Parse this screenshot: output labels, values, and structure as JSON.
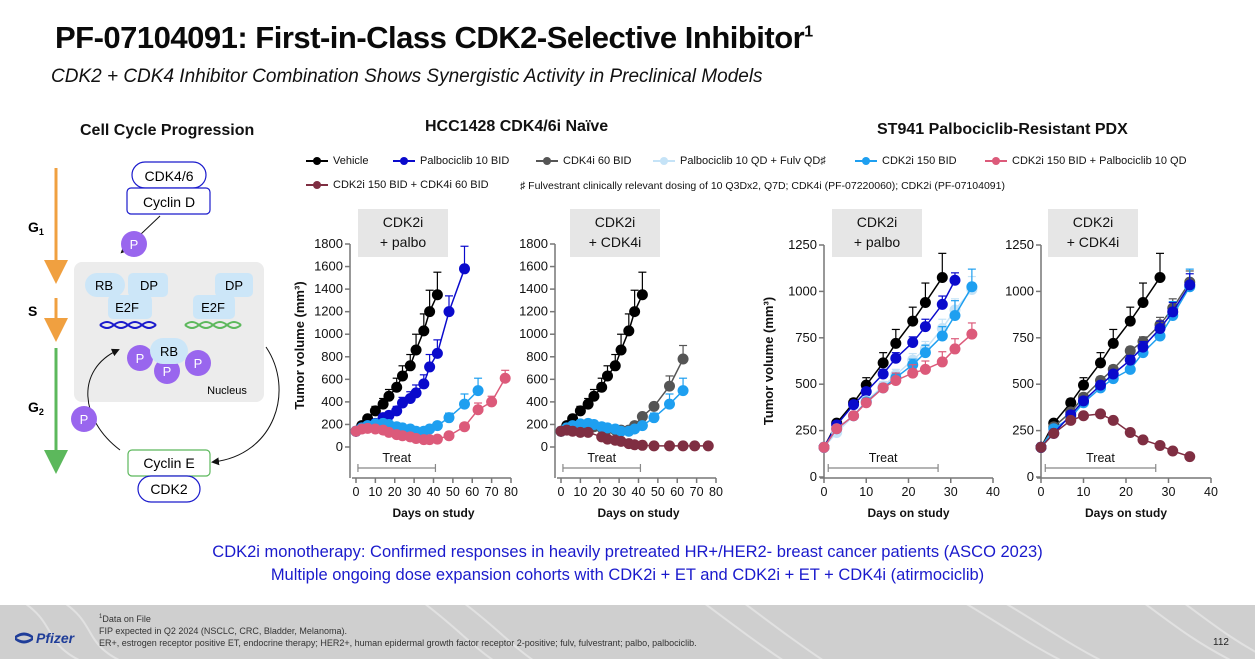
{
  "header": {
    "title": "PF-07104091: First-in-Class CDK2-Selective Inhibitor",
    "title_superscript": "1",
    "subtitle": "CDK2 + CDK4 Inhibitor Combination Shows Synergistic Activity in Preclinical Models"
  },
  "diagram": {
    "title": "Cell Cycle Progression",
    "phases": [
      {
        "label": "G",
        "sub": "1",
        "color": "#f0a040"
      },
      {
        "label": "S",
        "sub": "",
        "color": "#f0a040"
      },
      {
        "label": "G",
        "sub": "2",
        "color": "#5cb85c"
      }
    ],
    "cdk46": "CDK4/6",
    "cyclin_d": "Cyclin D",
    "cyclin_e": "Cyclin E",
    "cdk2": "CDK2",
    "rb": "RB",
    "dp": "DP",
    "e2f": "E2F",
    "p": "P",
    "nucleus": "Nucleus"
  },
  "sections": {
    "left_title": "HCC1428 CDK4/6i Naïve",
    "right_title": "ST941 Palbociclib-Resistant PDX"
  },
  "legend": {
    "items": [
      {
        "label": "Vehicle",
        "color": "#000000"
      },
      {
        "label": "Palbociclib 10 BID",
        "color": "#0a0acc"
      },
      {
        "label": "CDK4i 60 BID",
        "color": "#555555"
      },
      {
        "label": "Palbociclib 10 QD + Fulv QD♯",
        "color": "#c5e3f7"
      },
      {
        "label": "CDK2i 150 BID",
        "color": "#1e9ff0"
      },
      {
        "label": "CDK2i 150 BID + Palbociclib 10 QD",
        "color": "#dc5a7a"
      },
      {
        "label": "CDK2i 150 BID + CDK4i 60 BID",
        "color": "#7f2e42"
      }
    ],
    "footnote": "♯ Fulvestrant clinically relevant dosing of 10 Q3Dx2, Q7D; CDK4i (PF-07220060); CDK2i (PF-07104091)"
  },
  "chart_data": [
    {
      "type": "line",
      "model": "HCC1428 CDK4/6i Naïve",
      "panel_label": [
        "CDK2i",
        "+ palbo"
      ],
      "xlabel": "Days on study",
      "ylabel": "Tumor volume (mm³)",
      "xlim": [
        0,
        80
      ],
      "xticks": [
        "0",
        "10",
        "20",
        "30",
        "40",
        "50",
        "60",
        "70",
        "80"
      ],
      "ylim": [
        0,
        1800
      ],
      "yticks": [
        "0",
        "200",
        "400",
        "600",
        "800",
        "1000",
        "1200",
        "1400",
        "1600",
        "1800"
      ],
      "treat_label": "Treat",
      "treat_range": [
        1,
        41
      ],
      "series": [
        {
          "name": "Vehicle",
          "color": "#000000",
          "x": [
            0,
            3,
            6,
            10,
            14,
            17,
            21,
            24,
            28,
            31,
            35,
            38,
            42
          ],
          "y": [
            140,
            190,
            250,
            320,
            380,
            450,
            530,
            630,
            720,
            860,
            1030,
            1200,
            1350
          ],
          "err": [
            0,
            20,
            25,
            40,
            50,
            60,
            80,
            90,
            100,
            140,
            150,
            190,
            200
          ]
        },
        {
          "name": "Palbociclib 10 BID",
          "color": "#0a0acc",
          "x": [
            0,
            3,
            6,
            10,
            14,
            17,
            21,
            24,
            28,
            31,
            35,
            38,
            42,
            48,
            56
          ],
          "y": [
            140,
            170,
            190,
            210,
            260,
            280,
            320,
            390,
            430,
            480,
            560,
            710,
            830,
            1200,
            1580
          ],
          "err": [
            0,
            15,
            15,
            20,
            25,
            30,
            40,
            50,
            60,
            70,
            80,
            110,
            120,
            140,
            200
          ]
        },
        {
          "name": "CDK2i 150 BID",
          "color": "#1e9ff0",
          "x": [
            0,
            3,
            6,
            10,
            14,
            17,
            21,
            24,
            28,
            31,
            35,
            38,
            42,
            48,
            56,
            63
          ],
          "y": [
            140,
            170,
            190,
            205,
            210,
            200,
            180,
            170,
            160,
            140,
            140,
            160,
            190,
            260,
            380,
            500
          ],
          "err": [
            0,
            10,
            10,
            10,
            10,
            10,
            10,
            10,
            10,
            10,
            10,
            15,
            20,
            40,
            90,
            110
          ]
        },
        {
          "name": "CDK2i 150 BID + Palbociclib 10 QD",
          "color": "#dc5a7a",
          "x": [
            0,
            3,
            6,
            10,
            14,
            17,
            21,
            24,
            28,
            31,
            35,
            38,
            42,
            48,
            56,
            63,
            70,
            77
          ],
          "y": [
            140,
            160,
            165,
            160,
            150,
            130,
            110,
            100,
            90,
            75,
            65,
            65,
            70,
            100,
            180,
            330,
            400,
            610
          ],
          "err": [
            0,
            10,
            10,
            10,
            10,
            10,
            10,
            10,
            10,
            10,
            10,
            10,
            10,
            10,
            20,
            60,
            50,
            70
          ]
        }
      ]
    },
    {
      "type": "line",
      "model": "HCC1428 CDK4/6i Naïve",
      "panel_label": [
        "CDK2i",
        "+ CDK4i"
      ],
      "xlabel": "Days on study",
      "ylabel": "",
      "xlim": [
        0,
        80
      ],
      "xticks": [
        "0",
        "10",
        "20",
        "30",
        "40",
        "50",
        "60",
        "70",
        "80"
      ],
      "ylim": [
        0,
        1800
      ],
      "yticks": [
        "0",
        "200",
        "400",
        "600",
        "800",
        "1000",
        "1200",
        "1400",
        "1600",
        "1800"
      ],
      "treat_label": "Treat",
      "treat_range": [
        1,
        41
      ],
      "series": [
        {
          "name": "Vehicle",
          "color": "#000000",
          "x": [
            0,
            3,
            6,
            10,
            14,
            17,
            21,
            24,
            28,
            31,
            35,
            38,
            42
          ],
          "y": [
            140,
            190,
            250,
            320,
            380,
            450,
            530,
            630,
            720,
            860,
            1030,
            1200,
            1350
          ],
          "err": [
            0,
            20,
            25,
            40,
            50,
            60,
            80,
            90,
            100,
            140,
            150,
            190,
            200
          ]
        },
        {
          "name": "CDK4i 60 BID",
          "color": "#555555",
          "x": [
            0,
            3,
            6,
            10,
            14,
            17,
            21,
            24,
            28,
            31,
            35,
            38,
            42,
            48,
            56,
            63
          ],
          "y": [
            140,
            170,
            180,
            190,
            185,
            180,
            170,
            160,
            150,
            150,
            150,
            190,
            270,
            360,
            540,
            780
          ],
          "err": [
            0,
            10,
            10,
            10,
            10,
            10,
            10,
            10,
            10,
            10,
            10,
            15,
            20,
            30,
            90,
            120
          ]
        },
        {
          "name": "CDK2i 150 BID",
          "color": "#1e9ff0",
          "x": [
            0,
            3,
            6,
            10,
            14,
            17,
            21,
            24,
            28,
            31,
            35,
            38,
            42,
            48,
            56,
            63
          ],
          "y": [
            140,
            170,
            190,
            205,
            210,
            200,
            180,
            170,
            160,
            140,
            140,
            160,
            190,
            260,
            380,
            500
          ],
          "err": [
            0,
            10,
            10,
            10,
            10,
            10,
            10,
            10,
            10,
            10,
            10,
            15,
            20,
            40,
            90,
            110
          ]
        },
        {
          "name": "CDK2i 150 BID + CDK4i 60 BID",
          "color": "#7f2e42",
          "x": [
            0,
            3,
            6,
            10,
            14,
            21,
            24,
            28,
            31,
            35,
            38,
            42,
            48,
            56,
            63,
            69,
            76
          ],
          "y": [
            140,
            150,
            140,
            130,
            130,
            90,
            70,
            60,
            50,
            30,
            20,
            15,
            10,
            10,
            10,
            10,
            10
          ],
          "err": [
            0,
            10,
            10,
            10,
            10,
            10,
            10,
            10,
            10,
            5,
            5,
            5,
            5,
            5,
            5,
            5,
            5
          ]
        }
      ]
    },
    {
      "type": "line",
      "model": "ST941 Palbociclib-Resistant PDX",
      "panel_label": [
        "CDK2i",
        "+ palbo"
      ],
      "xlabel": "Days on study",
      "ylabel": "Tumor volume (mm³)",
      "xlim": [
        0,
        40
      ],
      "xticks": [
        "0",
        "10",
        "20",
        "30",
        "40"
      ],
      "ylim": [
        0,
        1250
      ],
      "yticks": [
        "0",
        "250",
        "500",
        "750",
        "1000",
        "1250"
      ],
      "treat_label": "Treat",
      "treat_range": [
        1,
        27
      ],
      "series": [
        {
          "name": "Vehicle",
          "color": "#000000",
          "x": [
            0,
            3,
            7,
            10,
            14,
            17,
            21,
            24,
            28
          ],
          "y": [
            160,
            290,
            400,
            495,
            615,
            720,
            840,
            940,
            1075
          ],
          "err": [
            0,
            15,
            20,
            40,
            55,
            75,
            75,
            105,
            130
          ]
        },
        {
          "name": "Palbociclib 10 BID",
          "color": "#0a0acc",
          "x": [
            0,
            3,
            7,
            10,
            14,
            17,
            21,
            24,
            28,
            31
          ],
          "y": [
            160,
            280,
            390,
            460,
            555,
            640,
            725,
            810,
            930,
            1060
          ],
          "err": [
            0,
            15,
            15,
            20,
            25,
            30,
            30,
            40,
            45,
            40
          ]
        },
        {
          "name": "Palbociclib 10 QD + Fulv QD♯",
          "color": "#c5e3f7",
          "x": [
            0,
            3,
            7,
            10,
            14,
            17,
            21,
            24,
            28,
            31,
            35
          ],
          "y": [
            160,
            240,
            330,
            410,
            490,
            550,
            630,
            690,
            800,
            900,
            1010
          ],
          "err": [
            0,
            15,
            15,
            20,
            25,
            30,
            35,
            40,
            50,
            60,
            70
          ]
        },
        {
          "name": "CDK2i 150 BID",
          "color": "#1e9ff0",
          "x": [
            0,
            3,
            7,
            10,
            14,
            17,
            21,
            24,
            28,
            31,
            35
          ],
          "y": [
            160,
            260,
            330,
            405,
            480,
            535,
            605,
            670,
            760,
            870,
            1025
          ],
          "err": [
            0,
            15,
            15,
            20,
            20,
            25,
            30,
            40,
            50,
            80,
            95
          ]
        },
        {
          "name": "CDK2i 150 BID + Palbociclib 10 QD",
          "color": "#dc5a7a",
          "x": [
            0,
            3,
            7,
            10,
            14,
            17,
            21,
            24,
            28,
            31,
            35
          ],
          "y": [
            160,
            260,
            330,
            400,
            480,
            520,
            560,
            580,
            620,
            690,
            770
          ],
          "err": [
            0,
            15,
            15,
            20,
            20,
            40,
            45,
            45,
            55,
            55,
            60
          ]
        }
      ]
    },
    {
      "type": "line",
      "model": "ST941 Palbociclib-Resistant PDX",
      "panel_label": [
        "CDK2i",
        "+ CDK4i"
      ],
      "xlabel": "Days on study",
      "ylabel": "",
      "xlim": [
        0,
        40
      ],
      "xticks": [
        "0",
        "10",
        "20",
        "30",
        "40"
      ],
      "ylim": [
        0,
        1250
      ],
      "yticks": [
        "0",
        "250",
        "500",
        "750",
        "1000",
        "1250"
      ],
      "treat_label": "Treat",
      "treat_range": [
        1,
        27
      ],
      "series": [
        {
          "name": "Vehicle",
          "color": "#000000",
          "x": [
            0,
            3,
            7,
            10,
            14,
            17,
            21,
            24,
            28
          ],
          "y": [
            160,
            290,
            400,
            495,
            615,
            720,
            840,
            940,
            1075
          ],
          "err": [
            0,
            15,
            20,
            40,
            55,
            75,
            75,
            105,
            130
          ]
        },
        {
          "name": "CDK4i 60 BID",
          "color": "#555555",
          "x": [
            0,
            3,
            7,
            10,
            14,
            17,
            21,
            24,
            28,
            31,
            35
          ],
          "y": [
            160,
            270,
            350,
            430,
            520,
            580,
            680,
            730,
            820,
            910,
            1050
          ],
          "err": [
            0,
            15,
            15,
            20,
            20,
            20,
            20,
            25,
            40,
            50,
            60
          ]
        },
        {
          "name": "CDK2i 150 BID",
          "color": "#1e9ff0",
          "x": [
            0,
            3,
            7,
            10,
            14,
            17,
            21,
            24,
            28,
            31,
            35
          ],
          "y": [
            160,
            260,
            320,
            400,
            480,
            530,
            580,
            670,
            760,
            870,
            1025
          ],
          "err": [
            0,
            15,
            15,
            20,
            20,
            25,
            30,
            45,
            55,
            75,
            95
          ]
        },
        {
          "name": "Palbociclib 10 BID",
          "color": "#0a0acc",
          "x": [
            0,
            3,
            7,
            10,
            14,
            17,
            21,
            24,
            28,
            31,
            35
          ],
          "y": [
            160,
            235,
            335,
            410,
            495,
            555,
            630,
            700,
            800,
            890,
            1035
          ],
          "err": [
            0,
            15,
            15,
            20,
            20,
            20,
            25,
            30,
            40,
            50,
            60
          ]
        },
        {
          "name": "CDK2i 150 BID + CDK4i 60 BID",
          "color": "#7f2e42",
          "x": [
            0,
            3,
            7,
            10,
            14,
            17,
            21,
            24,
            28,
            31,
            35
          ],
          "y": [
            160,
            235,
            305,
            330,
            340,
            305,
            240,
            200,
            170,
            140,
            110
          ],
          "err": [
            0,
            10,
            10,
            10,
            10,
            10,
            10,
            10,
            10,
            10,
            10
          ]
        }
      ]
    }
  ],
  "bottom": {
    "line1": "CDK2i monotherapy: Confirmed responses in heavily pretreated HR+/HER2- breast cancer patients (ASCO 2023)",
    "line2": "Multiple ongoing dose expansion cohorts with CDK2i + ET and CDK2i + ET + CDK4i (atirmociclib)"
  },
  "footer": {
    "note1_sup": "1",
    "note1": "Data on File",
    "note2": "FIP expected in Q2 2024 (NSCLC, CRC, Bladder, Melanoma).",
    "note3": "ER+, estrogen receptor positive ET, endocrine therapy; HER2+, human epidermal growth factor receptor 2-positive; fulv, fulvestrant; palbo, palbociclib.",
    "logo": "Pfizer",
    "page_number": "112"
  }
}
